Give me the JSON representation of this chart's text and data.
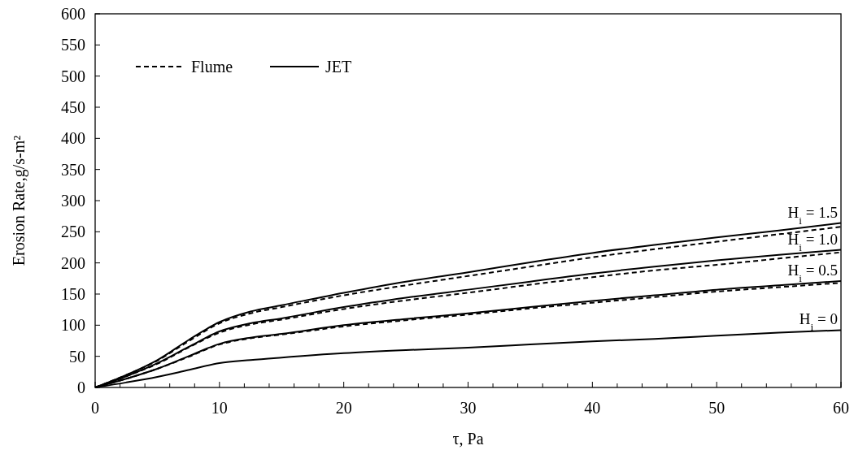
{
  "chart_data": {
    "type": "line",
    "xlabel": "τ, Pa",
    "ylabel": "Erosion Rate,g/s-m²",
    "x": [
      0,
      2.5,
      5,
      7.5,
      10,
      12.5,
      15,
      20,
      25,
      30,
      35,
      40,
      45,
      50,
      55,
      60
    ],
    "series": [
      {
        "name": "Flume",
        "color": "#000000",
        "line_style": "dashed",
        "values": [
          0,
          20,
          43,
          74,
          103,
          119,
          129,
          148,
          164,
          179,
          194,
          209,
          222,
          234,
          246,
          258
        ]
      },
      {
        "name": "JET",
        "color": "#000000",
        "line_style": "solid",
        "values": [
          0,
          20,
          44,
          76,
          105,
          122,
          132,
          152,
          170,
          185,
          201,
          216,
          229,
          241,
          252,
          264
        ]
      },
      {
        "color": "#000000",
        "line_style": "dashed",
        "values": [
          0,
          18,
          38,
          64,
          88,
          101,
          109,
          126,
          140,
          152,
          165,
          177,
          188,
          197,
          207,
          217
        ]
      },
      {
        "color": "#000000",
        "line_style": "solid",
        "values": [
          0,
          18,
          39,
          65,
          90,
          103,
          111,
          129,
          144,
          157,
          170,
          183,
          194,
          204,
          213,
          221
        ]
      },
      {
        "color": "#000000",
        "line_style": "dashed",
        "values": [
          0,
          14,
          30,
          49,
          69,
          79,
          85,
          98,
          108,
          117,
          127,
          136,
          145,
          154,
          161,
          168
        ]
      },
      {
        "color": "#000000",
        "line_style": "solid",
        "values": [
          0,
          14,
          30,
          50,
          70,
          80,
          86,
          100,
          110,
          119,
          129,
          139,
          148,
          157,
          164,
          171
        ]
      },
      {
        "color": "#000000",
        "line_style": "solid",
        "values": [
          0,
          8,
          17,
          28,
          39,
          44,
          48,
          55,
          60,
          64,
          69,
          74,
          78,
          83,
          88,
          92
        ]
      }
    ],
    "annotations": [
      {
        "text": "H$_{i}$ = 1.5",
        "y": 264
      },
      {
        "text": "H$_{i}$ = 1.0",
        "y": 221
      },
      {
        "text": "H$_{i}$ = 0.5",
        "y": 171
      },
      {
        "text": "H$_{i}$ = 0",
        "y": 92
      }
    ],
    "xlim": [
      0,
      60
    ],
    "ylim": [
      0,
      600
    ],
    "xticks": [
      0,
      {
        "value": 2,
        "label": null
      },
      {
        "value": 4,
        "label": null
      },
      {
        "value": 6,
        "label": null
      },
      {
        "value": 8,
        "label": null
      },
      10,
      {
        "value": 12,
        "label": null
      },
      {
        "value": 14,
        "label": null
      },
      {
        "value": 16,
        "label": null
      },
      {
        "value": 18,
        "label": null
      },
      20,
      {
        "value": 22,
        "label": null
      },
      {
        "value": 24,
        "label": null
      },
      {
        "value": 26,
        "label": null
      },
      {
        "value": 28,
        "label": null
      },
      30,
      {
        "value": 32,
        "label": null
      },
      {
        "value": 34,
        "label": null
      },
      {
        "value": 36,
        "label": null
      },
      {
        "value": 38,
        "label": null
      },
      40,
      {
        "value": 42,
        "label": null
      },
      {
        "value": 44,
        "label": null
      },
      {
        "value": 46,
        "label": null
      },
      {
        "value": 48,
        "label": null
      },
      50,
      {
        "value": 52,
        "label": null
      },
      {
        "value": 54,
        "label": null
      },
      {
        "value": 56,
        "label": null
      },
      {
        "value": 58,
        "label": null
      },
      60
    ],
    "yticks": [
      0,
      50,
      100,
      150,
      200,
      250,
      300,
      350,
      400,
      450,
      500,
      550,
      600
    ],
    "grid": false,
    "legend": "top left",
    "marker": "none"
  }
}
